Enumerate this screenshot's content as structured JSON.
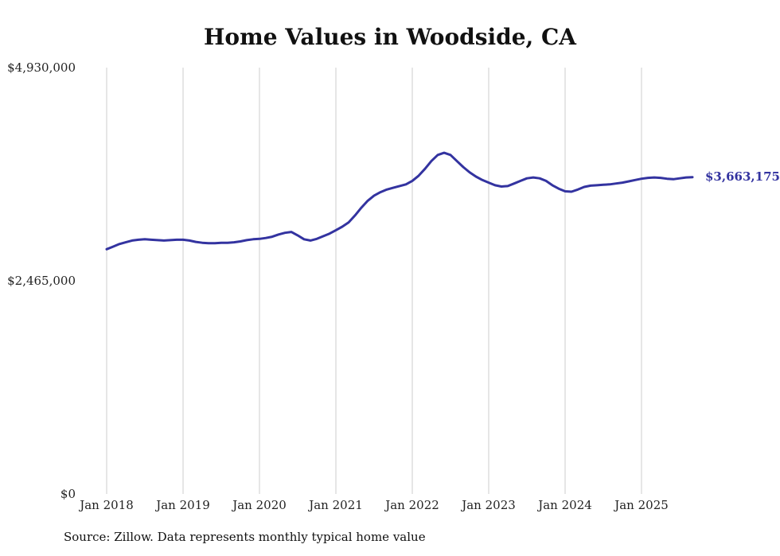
{
  "title": "Home Values in Woodside, CA",
  "source_note": "Source: Zillow. Data represents monthly typical home value",
  "colors": {
    "line": "#3333A0",
    "grid": "#cccccc",
    "tick_label": "#222222",
    "end_label": "#3333A0",
    "title": "#111111"
  },
  "chart_data": {
    "type": "line",
    "title": "Home Values in Woodside, CA",
    "xlabel": "",
    "ylabel": "",
    "ylim": [
      0,
      4930000
    ],
    "grid": "vertical-yearly",
    "legend": "none",
    "y_tick_labels": [
      "$4,930,000",
      "$2,465,000",
      "$0"
    ],
    "y_tick_values": [
      4930000,
      2465000,
      0
    ],
    "x_tick_labels": [
      "Jan 2018",
      "Jan 2019",
      "Jan 2020",
      "Jan 2021",
      "Jan 2022",
      "Jan 2023",
      "Jan 2024",
      "Jan 2025"
    ],
    "last_value_label": "$3,663,175",
    "x": [
      "2018-01",
      "2018-02",
      "2018-03",
      "2018-04",
      "2018-05",
      "2018-06",
      "2018-07",
      "2018-08",
      "2018-09",
      "2018-10",
      "2018-11",
      "2018-12",
      "2019-01",
      "2019-02",
      "2019-03",
      "2019-04",
      "2019-05",
      "2019-06",
      "2019-07",
      "2019-08",
      "2019-09",
      "2019-10",
      "2019-11",
      "2019-12",
      "2020-01",
      "2020-02",
      "2020-03",
      "2020-04",
      "2020-05",
      "2020-06",
      "2020-07",
      "2020-08",
      "2020-09",
      "2020-10",
      "2020-11",
      "2020-12",
      "2021-01",
      "2021-02",
      "2021-03",
      "2021-04",
      "2021-05",
      "2021-06",
      "2021-07",
      "2021-08",
      "2021-09",
      "2021-10",
      "2021-11",
      "2021-12",
      "2022-01",
      "2022-02",
      "2022-03",
      "2022-04",
      "2022-05",
      "2022-06",
      "2022-07",
      "2022-08",
      "2022-09",
      "2022-10",
      "2022-11",
      "2022-12",
      "2023-01",
      "2023-02",
      "2023-03",
      "2023-04",
      "2023-05",
      "2023-06",
      "2023-07",
      "2023-08",
      "2023-09",
      "2023-10",
      "2023-11",
      "2023-12",
      "2024-01",
      "2024-02",
      "2024-03",
      "2024-04",
      "2024-05",
      "2024-06",
      "2024-07",
      "2024-08",
      "2024-09",
      "2024-10",
      "2024-11",
      "2024-12",
      "2025-01",
      "2025-02",
      "2025-03",
      "2025-04",
      "2025-05",
      "2025-06",
      "2025-07",
      "2025-08",
      "2025-09"
    ],
    "values": [
      2830000,
      2860000,
      2890000,
      2910000,
      2930000,
      2940000,
      2945000,
      2940000,
      2935000,
      2930000,
      2935000,
      2940000,
      2940000,
      2930000,
      2915000,
      2905000,
      2900000,
      2900000,
      2905000,
      2905000,
      2910000,
      2920000,
      2935000,
      2945000,
      2950000,
      2960000,
      2975000,
      3000000,
      3020000,
      3030000,
      2990000,
      2945000,
      2930000,
      2950000,
      2980000,
      3010000,
      3050000,
      3090000,
      3140000,
      3220000,
      3310000,
      3390000,
      3450000,
      3490000,
      3520000,
      3540000,
      3560000,
      3580000,
      3620000,
      3680000,
      3760000,
      3850000,
      3920000,
      3945000,
      3920000,
      3850000,
      3780000,
      3720000,
      3670000,
      3630000,
      3600000,
      3570000,
      3555000,
      3560000,
      3590000,
      3620000,
      3650000,
      3660000,
      3650000,
      3620000,
      3570000,
      3530000,
      3500000,
      3495000,
      3520000,
      3550000,
      3565000,
      3570000,
      3575000,
      3580000,
      3590000,
      3600000,
      3615000,
      3630000,
      3645000,
      3655000,
      3660000,
      3655000,
      3645000,
      3640000,
      3650000,
      3660000,
      3663175
    ]
  }
}
